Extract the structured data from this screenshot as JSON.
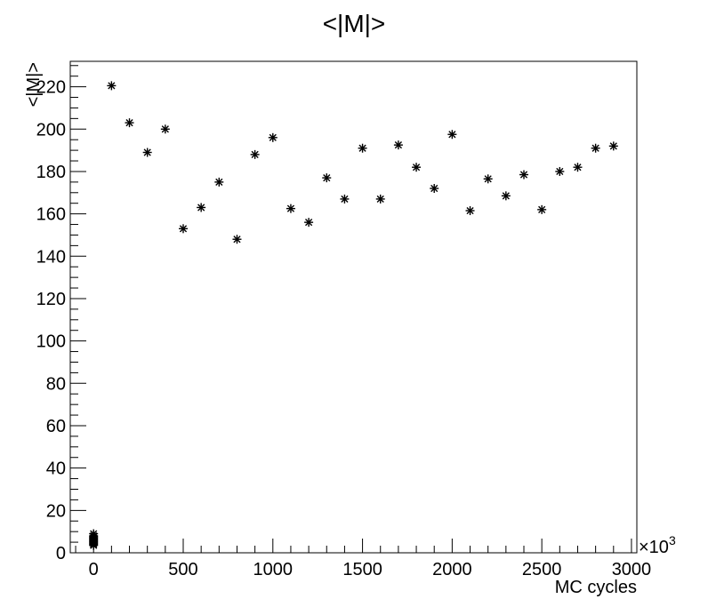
{
  "chart_data": {
    "type": "scatter",
    "title": "<|M|>",
    "xlabel": "MC cycles",
    "ylabel": "<|M|>",
    "x_multiplier_label": "×10",
    "x_multiplier_exp": "3",
    "xlim": [
      -130,
      3030
    ],
    "ylim": [
      0,
      232
    ],
    "x_ticks": [
      0,
      500,
      1000,
      1500,
      2000,
      2500,
      3000
    ],
    "y_ticks": [
      0,
      20,
      40,
      60,
      80,
      100,
      120,
      140,
      160,
      180,
      200,
      220
    ],
    "marker": "*",
    "marker_color": "#000000",
    "grid": false,
    "legend": "none",
    "series": [
      {
        "x": [
          0,
          0,
          0,
          0,
          0,
          0,
          0,
          0,
          0,
          0,
          0,
          100,
          200,
          300,
          400,
          500,
          600,
          700,
          800,
          900,
          1000,
          1100,
          1200,
          1300,
          1400,
          1500,
          1600,
          1700,
          1800,
          1900,
          2000,
          2100,
          2200,
          2300,
          2400,
          2500,
          2600,
          2700,
          2800,
          2900
        ],
        "y": [
          9,
          8,
          7.5,
          7,
          6.5,
          6,
          5.5,
          5,
          4.5,
          4,
          3.5,
          220.5,
          203,
          189,
          200,
          153,
          163,
          175,
          148,
          188,
          196,
          162.5,
          156,
          177,
          167,
          191,
          167,
          192.5,
          182,
          172,
          197.5,
          161.5,
          176.5,
          168.5,
          178.5,
          162,
          180,
          182,
          191,
          192
        ]
      }
    ]
  }
}
